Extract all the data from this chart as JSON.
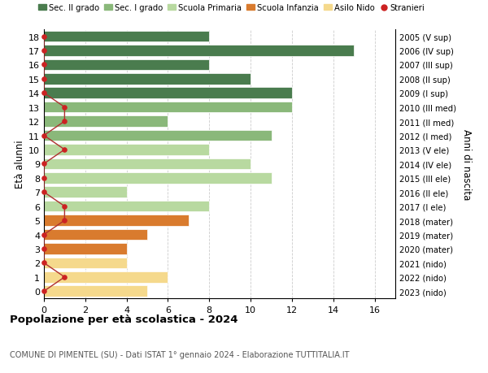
{
  "ages": [
    18,
    17,
    16,
    15,
    14,
    13,
    12,
    11,
    10,
    9,
    8,
    7,
    6,
    5,
    4,
    3,
    2,
    1,
    0
  ],
  "right_labels": [
    "2005 (V sup)",
    "2006 (IV sup)",
    "2007 (III sup)",
    "2008 (II sup)",
    "2009 (I sup)",
    "2010 (III med)",
    "2011 (II med)",
    "2012 (I med)",
    "2013 (V ele)",
    "2014 (IV ele)",
    "2015 (III ele)",
    "2016 (II ele)",
    "2017 (I ele)",
    "2018 (mater)",
    "2019 (mater)",
    "2020 (mater)",
    "2021 (nido)",
    "2022 (nido)",
    "2023 (nido)"
  ],
  "bar_values": [
    8,
    15,
    8,
    10,
    12,
    12,
    6,
    11,
    8,
    10,
    11,
    4,
    8,
    7,
    5,
    4,
    4,
    6,
    5
  ],
  "bar_colors": [
    "#4a7c4e",
    "#4a7c4e",
    "#4a7c4e",
    "#4a7c4e",
    "#4a7c4e",
    "#8ab87a",
    "#8ab87a",
    "#8ab87a",
    "#b8d9a0",
    "#b8d9a0",
    "#b8d9a0",
    "#b8d9a0",
    "#b8d9a0",
    "#d97b2e",
    "#d97b2e",
    "#d97b2e",
    "#f5d98c",
    "#f5d98c",
    "#f5d98c"
  ],
  "stranieri_x": [
    0,
    0,
    0,
    0,
    0,
    1,
    1,
    0,
    1,
    0,
    0,
    0,
    1,
    1,
    0,
    0,
    0,
    1,
    0
  ],
  "legend_labels": [
    "Sec. II grado",
    "Sec. I grado",
    "Scuola Primaria",
    "Scuola Infanzia",
    "Asilo Nido",
    "Stranieri"
  ],
  "legend_colors": [
    "#4a7c4e",
    "#8ab87a",
    "#b8d9a0",
    "#d97b2e",
    "#f5d98c",
    "#cc2222"
  ],
  "ylabel_left": "Età alunni",
  "ylabel_right": "Anni di nascita",
  "title": "Popolazione per età scolastica - 2024",
  "subtitle": "COMUNE DI PIMENTEL (SU) - Dati ISTAT 1° gennaio 2024 - Elaborazione TUTTITALIA.IT",
  "xlim": [
    0,
    17
  ],
  "xticks": [
    0,
    2,
    4,
    6,
    8,
    10,
    12,
    14,
    16
  ],
  "bg_color": "#ffffff",
  "grid_color": "#cccccc",
  "stranieri_line_color": "#b03030",
  "stranieri_dot_color": "#cc2222",
  "bar_height": 0.78
}
